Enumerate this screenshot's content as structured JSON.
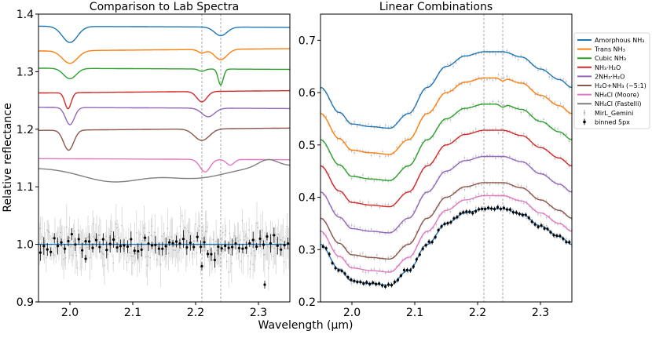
{
  "figure": {
    "xlabel": "Wavelength (μm)",
    "ylabel": "Relative reflectance"
  },
  "chart_data": [
    {
      "type": "line",
      "title": "Comparison to Lab Spectra",
      "xlim": [
        1.95,
        2.35
      ],
      "ylim": [
        0.9,
        1.4
      ],
      "xticks": [
        "2.0",
        "2.1",
        "2.2",
        "2.3"
      ],
      "yticks": [
        "0.9",
        "1.0",
        "1.1",
        "1.2",
        "1.3",
        "1.4"
      ],
      "vlines": [
        2.21,
        2.24
      ],
      "series": [
        {
          "name": "Amorphous NH3",
          "color": "#1f77b4",
          "base": 1.378,
          "dips": [
            [
              2.0,
              0.028,
              0.012
            ],
            [
              2.24,
              0.015,
              0.01
            ]
          ]
        },
        {
          "name": "Trans NH3",
          "color": "#ff7f0e",
          "base": 1.338,
          "dips": [
            [
              2.0,
              0.022,
              0.012
            ],
            [
              2.24,
              0.018,
              0.01
            ],
            [
              2.21,
              0.006,
              0.006
            ]
          ]
        },
        {
          "name": "Cubic NH3",
          "color": "#2ca02c",
          "base": 1.305,
          "dips": [
            [
              2.0,
              0.018,
              0.01
            ],
            [
              2.24,
              0.028,
              0.004
            ],
            [
              2.21,
              0.004,
              0.005
            ]
          ]
        },
        {
          "name": "NH3·H2O",
          "color": "#d62728",
          "base": 1.265,
          "dips": [
            [
              1.997,
              0.028,
              0.005
            ],
            [
              2.21,
              0.018,
              0.008
            ]
          ]
        },
        {
          "name": "2NH3·H2O",
          "color": "#9467bd",
          "base": 1.237,
          "dips": [
            [
              2.0,
              0.03,
              0.007
            ],
            [
              2.22,
              0.015,
              0.01
            ]
          ]
        },
        {
          "name": "H2O+NH3 (~5:1)",
          "color": "#8c564b",
          "base": 1.2,
          "dips": [
            [
              1.998,
              0.035,
              0.008
            ],
            [
              2.21,
              0.02,
              0.012
            ]
          ]
        },
        {
          "name": "NH4Cl (Moore)",
          "color": "#e377c2",
          "base": 1.148,
          "dips": [
            [
              2.215,
              0.022,
              0.008
            ],
            [
              2.255,
              0.01,
              0.006
            ]
          ]
        },
        {
          "name": "NH4Cl (Fastelli)",
          "color": "#7f7f7f",
          "base": 1.135,
          "dips": [
            [
              2.07,
              0.025,
              0.05
            ],
            [
              2.2,
              0.02,
              0.05
            ]
          ]
        }
      ],
      "observed": {
        "name": "MirL_Gemini",
        "level": 1.0,
        "scatter": 0.04
      },
      "binned": {
        "name": "binned 5px",
        "level": 1.0,
        "scatter": 0.015
      },
      "fit_line": {
        "value": 1.0,
        "color": "#1f77b4"
      }
    },
    {
      "type": "line",
      "title": "Linear Combinations",
      "xlim": [
        1.95,
        2.35
      ],
      "ylim": [
        0.2,
        0.75
      ],
      "xticks": [
        "2.0",
        "2.1",
        "2.2",
        "2.3"
      ],
      "yticks": [
        "0.2",
        "0.3",
        "0.4",
        "0.5",
        "0.6",
        "0.7"
      ],
      "vlines": [
        2.21,
        2.24
      ],
      "offsets": [
        0.3,
        0.25,
        0.2,
        0.15,
        0.1,
        0.05,
        0.025,
        0.0
      ],
      "base_curve": {
        "x": [
          1.95,
          1.98,
          2.0,
          2.03,
          2.06,
          2.09,
          2.12,
          2.15,
          2.18,
          2.21,
          2.24,
          2.27,
          2.3,
          2.33,
          2.35
        ],
        "y": [
          0.31,
          0.262,
          0.24,
          0.235,
          0.232,
          0.26,
          0.31,
          0.35,
          0.37,
          0.378,
          0.378,
          0.368,
          0.345,
          0.325,
          0.31
        ]
      },
      "series_colors": [
        "#1f77b4",
        "#ff7f0e",
        "#2ca02c",
        "#d62728",
        "#9467bd",
        "#8c564b",
        "#e377c2",
        "#1f77b4"
      ],
      "binned_color": "#000000",
      "data_color": "#bbbbbb"
    }
  ],
  "legend": {
    "entries": [
      {
        "label": "Amorphous NH₃",
        "color": "#1f77b4",
        "kind": "line"
      },
      {
        "label": "Trans NH₃",
        "color": "#ff7f0e",
        "kind": "line"
      },
      {
        "label": "Cubic NH₃",
        "color": "#2ca02c",
        "kind": "line"
      },
      {
        "label": "NH₃·H₂O",
        "color": "#d62728",
        "kind": "line"
      },
      {
        "label": "2NH₃·H₂O",
        "color": "#9467bd",
        "kind": "line"
      },
      {
        "label": "H₂O+NH₃ (~5:1)",
        "color": "#8c564b",
        "kind": "line"
      },
      {
        "label": "NH₄Cl (Moore)",
        "color": "#e377c2",
        "kind": "line"
      },
      {
        "label": "NH₄Cl (Fastelli)",
        "color": "#7f7f7f",
        "kind": "line"
      },
      {
        "label": "MirL_Gemini",
        "color": "#aaaaaa",
        "kind": "errpoint"
      },
      {
        "label": "binned 5px",
        "color": "#000000",
        "kind": "errpoint"
      }
    ]
  }
}
